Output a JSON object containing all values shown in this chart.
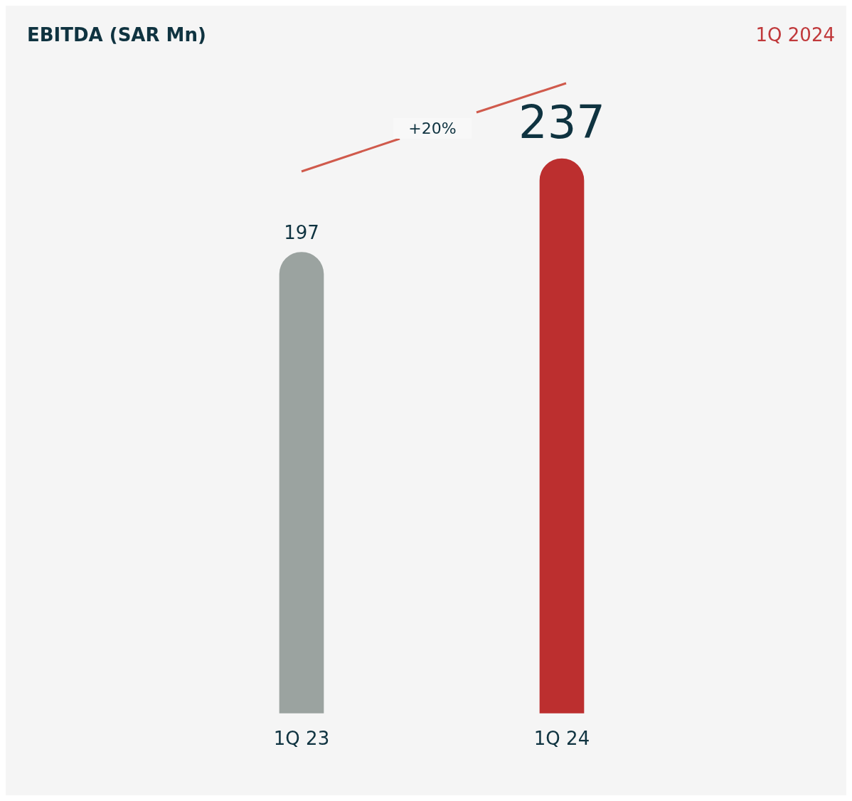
{
  "chart_data": {
    "type": "bar",
    "title": "EBITDA (SAR Mn)",
    "subtitle": "1Q 2024",
    "categories": [
      "1Q 23",
      "1Q 24"
    ],
    "values": [
      197,
      237
    ],
    "colors": [
      "#9ba3a0",
      "#bc2f2f"
    ],
    "data_labels": true,
    "annotations": [
      "+20%"
    ],
    "grid": false,
    "legend": false
  }
}
